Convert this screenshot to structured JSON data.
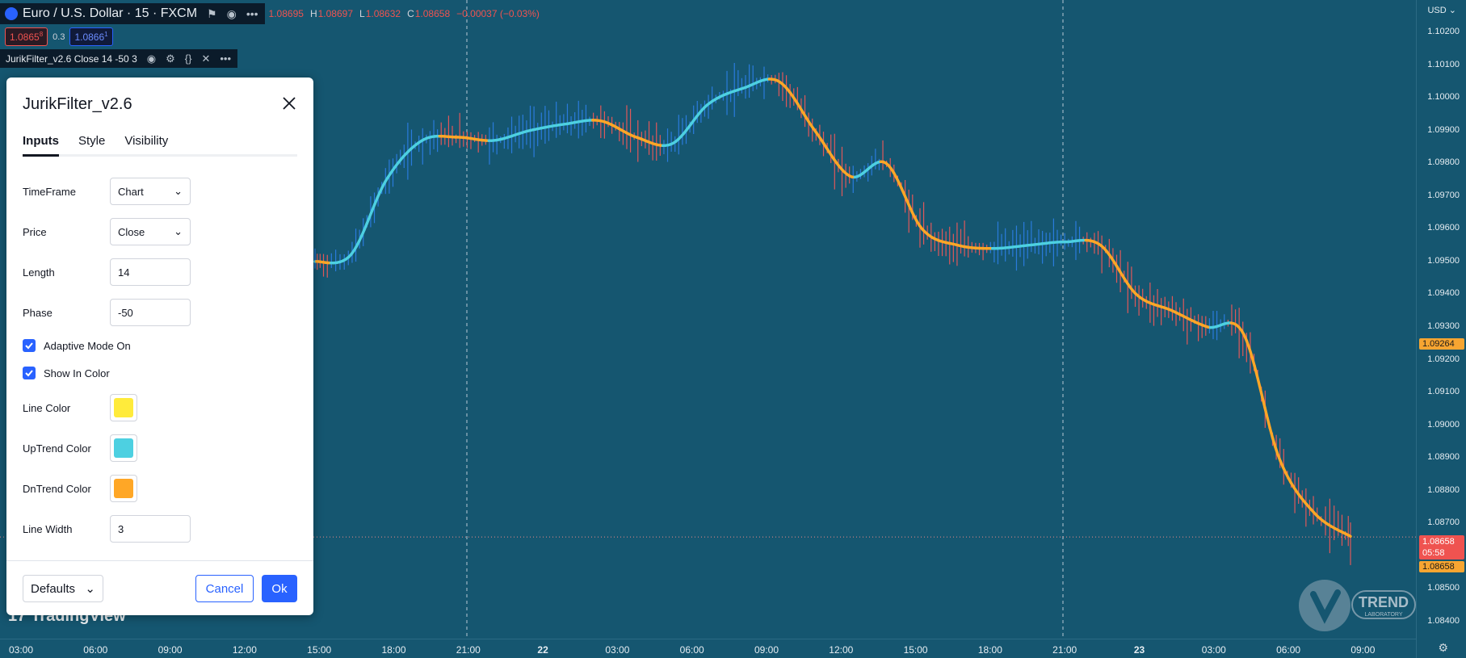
{
  "header": {
    "symbol": "Euro / U.S. Dollar · 15 · FXCM",
    "ohlc": [
      {
        "k": "",
        "v": "1.08695"
      },
      {
        "k": "H",
        "v": "1.08697"
      },
      {
        "k": "L",
        "v": "1.08632"
      },
      {
        "k": "C",
        "v": "1.08658"
      },
      {
        "k": "",
        "v": "−0.00037 (−0.03%)"
      }
    ],
    "sell_price": "1.0865",
    "sell_price_sup": "8",
    "spread": "0.3",
    "buy_price": "1.0866",
    "buy_price_sup": "1"
  },
  "indicator": {
    "label": "JurikFilter_v2.6 Close 14 -50 3"
  },
  "axis": {
    "currency": "USD",
    "y_ticks": [
      "1.10200",
      "1.10100",
      "1.10000",
      "1.09900",
      "1.09800",
      "1.09700",
      "1.09600",
      "1.09500",
      "1.09400",
      "1.09300",
      "1.09200",
      "1.09100",
      "1.09000",
      "1.08900",
      "1.08800",
      "1.08700",
      "1.08600",
      "1.08500",
      "1.08400"
    ],
    "x_ticks": [
      "03:00",
      "06:00",
      "09:00",
      "12:00",
      "15:00",
      "18:00",
      "21:00",
      "22",
      "03:00",
      "06:00",
      "09:00",
      "12:00",
      "15:00",
      "18:00",
      "21:00",
      "23",
      "03:00",
      "06:00",
      "09:00"
    ],
    "tag_indicator": "1.09264",
    "tag_price": "1.08658",
    "tag_countdown": "05:58",
    "tag_price2": "1.08658"
  },
  "branding": {
    "tradingview": "TradingView",
    "watermark_text": "TREND",
    "watermark_sub": "LABORATORY"
  },
  "dialog": {
    "title": "JurikFilter_v2.6",
    "tabs": [
      "Inputs",
      "Style",
      "Visibility"
    ],
    "timeframe_label": "TimeFrame",
    "timeframe_value": "Chart",
    "price_label": "Price",
    "price_value": "Close",
    "length_label": "Length",
    "length_value": "14",
    "phase_label": "Phase",
    "phase_value": "-50",
    "adaptive_label": "Adaptive Mode On",
    "showcolor_label": "Show In Color",
    "linecolor_label": "Line Color",
    "uptrend_label": "UpTrend Color",
    "dntrend_label": "DnTrend Color",
    "linewidth_label": "Line Width",
    "linewidth_value": "3",
    "defaults_label": "Defaults",
    "cancel_label": "Cancel",
    "ok_label": "Ok"
  },
  "colors": {
    "line_color": "#ffeb3b",
    "uptrend_color": "#4dd0e1",
    "dntrend_color": "#ffa726",
    "background": "#155670",
    "bull_bar": "#2a7bdc",
    "bear_bar": "#e0585a"
  },
  "chart_data": {
    "type": "line",
    "title": "Euro / U.S. Dollar · 15 · FXCM",
    "ylim": [
      1.0835,
      1.1025
    ],
    "y_ticks": [
      "1.10200",
      "1.10100",
      "1.10000",
      "1.09900",
      "1.09800",
      "1.09700",
      "1.09600",
      "1.09500",
      "1.09400",
      "1.09300",
      "1.09200",
      "1.09100",
      "1.09000",
      "1.08900",
      "1.08800",
      "1.08700",
      "1.08600",
      "1.08500",
      "1.08400"
    ],
    "x": [
      "15:00",
      "16:30",
      "18:00",
      "19:00",
      "21:00",
      "22:00",
      "00:00",
      "03:00",
      "04:00",
      "06:00",
      "07:00",
      "09:00",
      "10:00",
      "11:00",
      "12:00",
      "13:00",
      "14:00",
      "15:00",
      "16:00",
      "18:00",
      "21:00",
      "23:00",
      "00:30",
      "01:30",
      "03:00",
      "04:30",
      "06:00",
      "07:00",
      "07:30",
      "08:30"
    ],
    "series": [
      {
        "values": [
          1.095,
          1.0952,
          1.0975,
          1.0987,
          1.0988,
          1.0987,
          1.099,
          1.0992,
          1.0993,
          1.0988,
          1.0986,
          1.0998,
          1.1003,
          1.1005,
          1.099,
          1.0976,
          1.098,
          1.096,
          1.0955,
          1.0954,
          1.0955,
          1.0956,
          1.0955,
          1.094,
          1.0935,
          1.093,
          1.0928,
          1.089,
          1.0873,
          1.0866
        ]
      }
    ]
  }
}
